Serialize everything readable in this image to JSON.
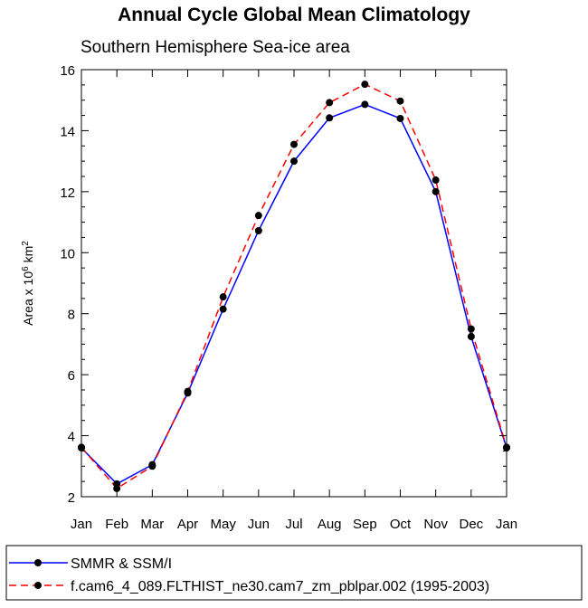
{
  "chart_data": {
    "type": "line",
    "title": "Annual Cycle Global Mean Climatology",
    "subtitle": "Southern Hemisphere Sea-ice area",
    "ylabel_prefix": "Area x 10",
    "ylabel_exponent": "6",
    "ylabel_unit": " km",
    "ylabel_unit_exponent": "2",
    "xlabel": "",
    "categories": [
      "Jan",
      "Feb",
      "Mar",
      "Apr",
      "May",
      "Jun",
      "Jul",
      "Aug",
      "Sep",
      "Oct",
      "Nov",
      "Dec",
      "Jan"
    ],
    "ylim": [
      2,
      16
    ],
    "yticks": [
      2,
      4,
      6,
      8,
      10,
      12,
      14,
      16
    ],
    "grid": false,
    "legend_position": "bottom",
    "series": [
      {
        "name": "SMMR & SSM/I",
        "color": "#0000ff",
        "dash": "solid",
        "values": [
          3.6,
          2.42,
          3.05,
          5.4,
          8.15,
          10.72,
          13.0,
          14.42,
          14.86,
          14.4,
          12.0,
          7.25,
          3.6
        ]
      },
      {
        "name": "f.cam6_4_089.FLTHIST_ne30.cam7_zm_pblpar.002 (1995-2003)",
        "color": "#ff0000",
        "dash": "dashed",
        "values": [
          3.62,
          2.27,
          3.0,
          5.45,
          8.55,
          11.22,
          13.55,
          14.92,
          15.52,
          14.97,
          12.38,
          7.5,
          3.62
        ]
      }
    ]
  }
}
